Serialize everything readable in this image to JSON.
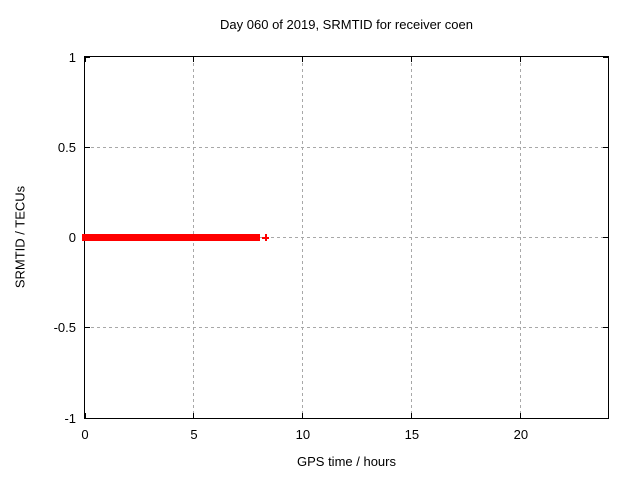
{
  "page": {
    "background": "#ffffff"
  },
  "colors": {
    "frame": "#000000",
    "grid": "#a8a8a8",
    "text": "#000000",
    "data": "#ff0000"
  },
  "chart_data": {
    "type": "scatter",
    "title": "Day 060 of 2019, SRMTID for receiver coen",
    "xlabel": "GPS time / hours",
    "ylabel": "SRMTID / TECUs",
    "xlim": [
      0,
      24
    ],
    "ylim": [
      -1,
      1
    ],
    "xticks": [
      0,
      5,
      10,
      15,
      20
    ],
    "xtick_labels": [
      "0",
      "5",
      "10",
      "15",
      "20"
    ],
    "yticks": [
      -1,
      -0.5,
      0,
      0.5,
      1
    ],
    "ytick_labels": [
      "-1",
      "-0.5",
      "0",
      "0.5",
      "1"
    ],
    "grid": true,
    "grid_style": "gray dashed at major ticks, mirrored inward tick marks on all four borders",
    "legend_position": "none",
    "marker": "plus",
    "series": [
      {
        "name": "SRMTID",
        "color": "#ff0000",
        "runs": [
          {
            "x_start": 0,
            "x_end": 8.05,
            "y": 0,
            "note": "dense contiguous run of plus markers at y=0"
          }
        ],
        "points": [
          {
            "x": 8.3,
            "y": 0
          }
        ]
      }
    ]
  }
}
